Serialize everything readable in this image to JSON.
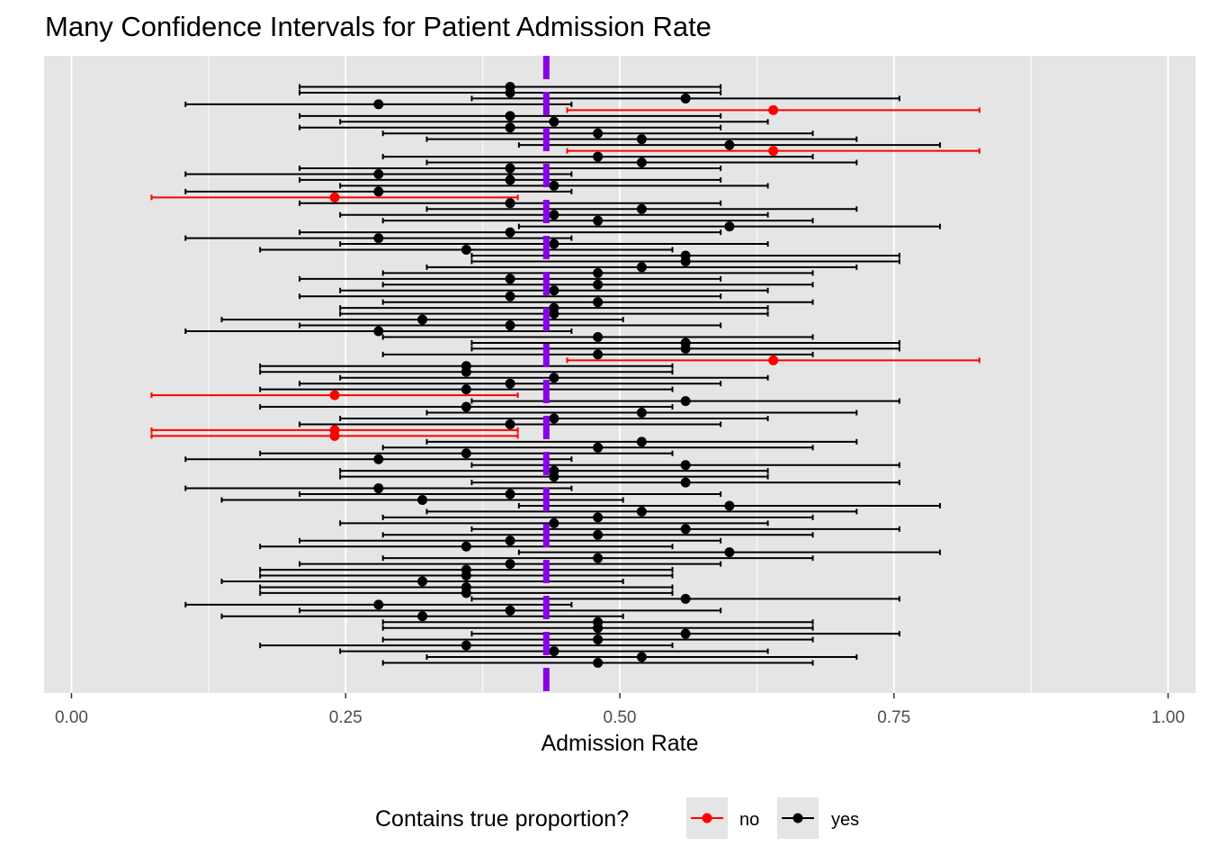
{
  "chart_data": {
    "type": "errorbar",
    "title": "Many Confidence Intervals for Patient Admission Rate",
    "xlabel": "Admission Rate",
    "ylabel": "",
    "xlim": [
      -0.025,
      1.025
    ],
    "x_ticks": [
      0,
      0.25,
      0.5,
      0.75,
      1
    ],
    "x_tick_labels": [
      "0.00",
      "0.25",
      "0.50",
      "0.75",
      "1.00"
    ],
    "grid": true,
    "true_proportion": 0.433,
    "colors": {
      "no": "#ff0000",
      "yes": "#000000",
      "true_line": "#8a00e6",
      "panel_bg": "#e5e5e5",
      "grid": "#ffffff"
    },
    "legend": {
      "title": "Contains true proportion?",
      "position": "bottom",
      "entries": [
        {
          "label": "no",
          "color": "#ff0000"
        },
        {
          "label": "yes",
          "color": "#000000"
        }
      ]
    },
    "intervals": [
      {
        "estimate": 0.4,
        "lower": 0.208,
        "upper": 0.592,
        "contains": "yes"
      },
      {
        "estimate": 0.4,
        "lower": 0.208,
        "upper": 0.592,
        "contains": "yes"
      },
      {
        "estimate": 0.56,
        "lower": 0.365,
        "upper": 0.755,
        "contains": "yes"
      },
      {
        "estimate": 0.28,
        "lower": 0.104,
        "upper": 0.456,
        "contains": "yes"
      },
      {
        "estimate": 0.64,
        "lower": 0.452,
        "upper": 0.828,
        "contains": "no"
      },
      {
        "estimate": 0.4,
        "lower": 0.208,
        "upper": 0.592,
        "contains": "yes"
      },
      {
        "estimate": 0.44,
        "lower": 0.245,
        "upper": 0.635,
        "contains": "yes"
      },
      {
        "estimate": 0.4,
        "lower": 0.208,
        "upper": 0.592,
        "contains": "yes"
      },
      {
        "estimate": 0.48,
        "lower": 0.284,
        "upper": 0.676,
        "contains": "yes"
      },
      {
        "estimate": 0.52,
        "lower": 0.324,
        "upper": 0.716,
        "contains": "yes"
      },
      {
        "estimate": 0.6,
        "lower": 0.408,
        "upper": 0.792,
        "contains": "yes"
      },
      {
        "estimate": 0.64,
        "lower": 0.452,
        "upper": 0.828,
        "contains": "no"
      },
      {
        "estimate": 0.48,
        "lower": 0.284,
        "upper": 0.676,
        "contains": "yes"
      },
      {
        "estimate": 0.52,
        "lower": 0.324,
        "upper": 0.716,
        "contains": "yes"
      },
      {
        "estimate": 0.4,
        "lower": 0.208,
        "upper": 0.592,
        "contains": "yes"
      },
      {
        "estimate": 0.28,
        "lower": 0.104,
        "upper": 0.456,
        "contains": "yes"
      },
      {
        "estimate": 0.4,
        "lower": 0.208,
        "upper": 0.592,
        "contains": "yes"
      },
      {
        "estimate": 0.44,
        "lower": 0.245,
        "upper": 0.635,
        "contains": "yes"
      },
      {
        "estimate": 0.28,
        "lower": 0.104,
        "upper": 0.456,
        "contains": "yes"
      },
      {
        "estimate": 0.24,
        "lower": 0.073,
        "upper": 0.407,
        "contains": "no"
      },
      {
        "estimate": 0.4,
        "lower": 0.208,
        "upper": 0.592,
        "contains": "yes"
      },
      {
        "estimate": 0.52,
        "lower": 0.324,
        "upper": 0.716,
        "contains": "yes"
      },
      {
        "estimate": 0.44,
        "lower": 0.245,
        "upper": 0.635,
        "contains": "yes"
      },
      {
        "estimate": 0.48,
        "lower": 0.284,
        "upper": 0.676,
        "contains": "yes"
      },
      {
        "estimate": 0.6,
        "lower": 0.408,
        "upper": 0.792,
        "contains": "yes"
      },
      {
        "estimate": 0.4,
        "lower": 0.208,
        "upper": 0.592,
        "contains": "yes"
      },
      {
        "estimate": 0.28,
        "lower": 0.104,
        "upper": 0.456,
        "contains": "yes"
      },
      {
        "estimate": 0.44,
        "lower": 0.245,
        "upper": 0.635,
        "contains": "yes"
      },
      {
        "estimate": 0.36,
        "lower": 0.172,
        "upper": 0.548,
        "contains": "yes"
      },
      {
        "estimate": 0.56,
        "lower": 0.365,
        "upper": 0.755,
        "contains": "yes"
      },
      {
        "estimate": 0.56,
        "lower": 0.365,
        "upper": 0.755,
        "contains": "yes"
      },
      {
        "estimate": 0.52,
        "lower": 0.324,
        "upper": 0.716,
        "contains": "yes"
      },
      {
        "estimate": 0.48,
        "lower": 0.284,
        "upper": 0.676,
        "contains": "yes"
      },
      {
        "estimate": 0.4,
        "lower": 0.208,
        "upper": 0.592,
        "contains": "yes"
      },
      {
        "estimate": 0.48,
        "lower": 0.284,
        "upper": 0.676,
        "contains": "yes"
      },
      {
        "estimate": 0.44,
        "lower": 0.245,
        "upper": 0.635,
        "contains": "yes"
      },
      {
        "estimate": 0.4,
        "lower": 0.208,
        "upper": 0.592,
        "contains": "yes"
      },
      {
        "estimate": 0.48,
        "lower": 0.284,
        "upper": 0.676,
        "contains": "yes"
      },
      {
        "estimate": 0.44,
        "lower": 0.245,
        "upper": 0.635,
        "contains": "yes"
      },
      {
        "estimate": 0.44,
        "lower": 0.245,
        "upper": 0.635,
        "contains": "yes"
      },
      {
        "estimate": 0.32,
        "lower": 0.137,
        "upper": 0.503,
        "contains": "yes"
      },
      {
        "estimate": 0.4,
        "lower": 0.208,
        "upper": 0.592,
        "contains": "yes"
      },
      {
        "estimate": 0.28,
        "lower": 0.104,
        "upper": 0.456,
        "contains": "yes"
      },
      {
        "estimate": 0.48,
        "lower": 0.284,
        "upper": 0.676,
        "contains": "yes"
      },
      {
        "estimate": 0.56,
        "lower": 0.365,
        "upper": 0.755,
        "contains": "yes"
      },
      {
        "estimate": 0.56,
        "lower": 0.365,
        "upper": 0.755,
        "contains": "yes"
      },
      {
        "estimate": 0.48,
        "lower": 0.284,
        "upper": 0.676,
        "contains": "yes"
      },
      {
        "estimate": 0.64,
        "lower": 0.452,
        "upper": 0.828,
        "contains": "no"
      },
      {
        "estimate": 0.36,
        "lower": 0.172,
        "upper": 0.548,
        "contains": "yes"
      },
      {
        "estimate": 0.36,
        "lower": 0.172,
        "upper": 0.548,
        "contains": "yes"
      },
      {
        "estimate": 0.44,
        "lower": 0.245,
        "upper": 0.635,
        "contains": "yes"
      },
      {
        "estimate": 0.4,
        "lower": 0.208,
        "upper": 0.592,
        "contains": "yes"
      },
      {
        "estimate": 0.36,
        "lower": 0.172,
        "upper": 0.548,
        "contains": "yes"
      },
      {
        "estimate": 0.24,
        "lower": 0.073,
        "upper": 0.407,
        "contains": "no"
      },
      {
        "estimate": 0.56,
        "lower": 0.365,
        "upper": 0.755,
        "contains": "yes"
      },
      {
        "estimate": 0.36,
        "lower": 0.172,
        "upper": 0.548,
        "contains": "yes"
      },
      {
        "estimate": 0.52,
        "lower": 0.324,
        "upper": 0.716,
        "contains": "yes"
      },
      {
        "estimate": 0.44,
        "lower": 0.245,
        "upper": 0.635,
        "contains": "yes"
      },
      {
        "estimate": 0.4,
        "lower": 0.208,
        "upper": 0.592,
        "contains": "yes"
      },
      {
        "estimate": 0.24,
        "lower": 0.073,
        "upper": 0.407,
        "contains": "no"
      },
      {
        "estimate": 0.24,
        "lower": 0.073,
        "upper": 0.407,
        "contains": "no"
      },
      {
        "estimate": 0.52,
        "lower": 0.324,
        "upper": 0.716,
        "contains": "yes"
      },
      {
        "estimate": 0.48,
        "lower": 0.284,
        "upper": 0.676,
        "contains": "yes"
      },
      {
        "estimate": 0.36,
        "lower": 0.172,
        "upper": 0.548,
        "contains": "yes"
      },
      {
        "estimate": 0.28,
        "lower": 0.104,
        "upper": 0.456,
        "contains": "yes"
      },
      {
        "estimate": 0.56,
        "lower": 0.365,
        "upper": 0.755,
        "contains": "yes"
      },
      {
        "estimate": 0.44,
        "lower": 0.245,
        "upper": 0.635,
        "contains": "yes"
      },
      {
        "estimate": 0.44,
        "lower": 0.245,
        "upper": 0.635,
        "contains": "yes"
      },
      {
        "estimate": 0.56,
        "lower": 0.365,
        "upper": 0.755,
        "contains": "yes"
      },
      {
        "estimate": 0.28,
        "lower": 0.104,
        "upper": 0.456,
        "contains": "yes"
      },
      {
        "estimate": 0.4,
        "lower": 0.208,
        "upper": 0.592,
        "contains": "yes"
      },
      {
        "estimate": 0.32,
        "lower": 0.137,
        "upper": 0.503,
        "contains": "yes"
      },
      {
        "estimate": 0.6,
        "lower": 0.408,
        "upper": 0.792,
        "contains": "yes"
      },
      {
        "estimate": 0.52,
        "lower": 0.324,
        "upper": 0.716,
        "contains": "yes"
      },
      {
        "estimate": 0.48,
        "lower": 0.284,
        "upper": 0.676,
        "contains": "yes"
      },
      {
        "estimate": 0.44,
        "lower": 0.245,
        "upper": 0.635,
        "contains": "yes"
      },
      {
        "estimate": 0.56,
        "lower": 0.365,
        "upper": 0.755,
        "contains": "yes"
      },
      {
        "estimate": 0.48,
        "lower": 0.284,
        "upper": 0.676,
        "contains": "yes"
      },
      {
        "estimate": 0.4,
        "lower": 0.208,
        "upper": 0.592,
        "contains": "yes"
      },
      {
        "estimate": 0.36,
        "lower": 0.172,
        "upper": 0.548,
        "contains": "yes"
      },
      {
        "estimate": 0.6,
        "lower": 0.408,
        "upper": 0.792,
        "contains": "yes"
      },
      {
        "estimate": 0.48,
        "lower": 0.284,
        "upper": 0.676,
        "contains": "yes"
      },
      {
        "estimate": 0.4,
        "lower": 0.208,
        "upper": 0.592,
        "contains": "yes"
      },
      {
        "estimate": 0.36,
        "lower": 0.172,
        "upper": 0.548,
        "contains": "yes"
      },
      {
        "estimate": 0.36,
        "lower": 0.172,
        "upper": 0.548,
        "contains": "yes"
      },
      {
        "estimate": 0.32,
        "lower": 0.137,
        "upper": 0.503,
        "contains": "yes"
      },
      {
        "estimate": 0.36,
        "lower": 0.172,
        "upper": 0.548,
        "contains": "yes"
      },
      {
        "estimate": 0.36,
        "lower": 0.172,
        "upper": 0.548,
        "contains": "yes"
      },
      {
        "estimate": 0.56,
        "lower": 0.365,
        "upper": 0.755,
        "contains": "yes"
      },
      {
        "estimate": 0.28,
        "lower": 0.104,
        "upper": 0.456,
        "contains": "yes"
      },
      {
        "estimate": 0.4,
        "lower": 0.208,
        "upper": 0.592,
        "contains": "yes"
      },
      {
        "estimate": 0.32,
        "lower": 0.137,
        "upper": 0.503,
        "contains": "yes"
      },
      {
        "estimate": 0.48,
        "lower": 0.284,
        "upper": 0.676,
        "contains": "yes"
      },
      {
        "estimate": 0.48,
        "lower": 0.284,
        "upper": 0.676,
        "contains": "yes"
      },
      {
        "estimate": 0.56,
        "lower": 0.365,
        "upper": 0.755,
        "contains": "yes"
      },
      {
        "estimate": 0.48,
        "lower": 0.284,
        "upper": 0.676,
        "contains": "yes"
      },
      {
        "estimate": 0.36,
        "lower": 0.172,
        "upper": 0.548,
        "contains": "yes"
      },
      {
        "estimate": 0.44,
        "lower": 0.245,
        "upper": 0.635,
        "contains": "yes"
      },
      {
        "estimate": 0.52,
        "lower": 0.324,
        "upper": 0.716,
        "contains": "yes"
      },
      {
        "estimate": 0.48,
        "lower": 0.284,
        "upper": 0.676,
        "contains": "yes"
      }
    ]
  }
}
